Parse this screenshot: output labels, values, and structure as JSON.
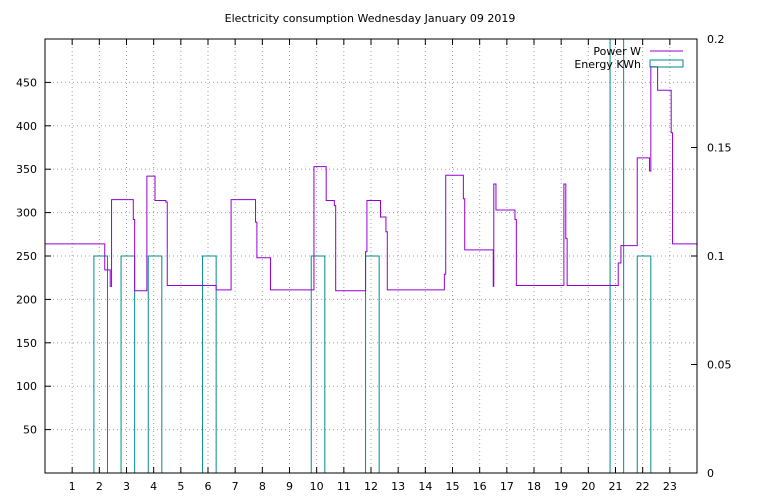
{
  "chart_data": {
    "type": "line",
    "title": "Electricity consumption Wednesday January 09 2019",
    "x": {
      "min": 0,
      "max": 24,
      "ticks": [
        1,
        2,
        3,
        4,
        5,
        6,
        7,
        8,
        9,
        10,
        11,
        12,
        13,
        14,
        15,
        16,
        17,
        18,
        19,
        20,
        21,
        22,
        23
      ],
      "grid": true
    },
    "y_left": {
      "min": 0,
      "max": 500,
      "ticks": [
        50,
        100,
        150,
        200,
        250,
        300,
        350,
        400,
        450
      ],
      "grid": true
    },
    "y_right": {
      "min": 0,
      "max": 0.2,
      "ticks": [
        0,
        0.05,
        0.1,
        0.15,
        0.2
      ],
      "tick_labels": [
        "0",
        "0.05",
        "0.1",
        "0.15",
        "0.2"
      ]
    },
    "legend_position": "top-right",
    "series": [
      {
        "name": "Power W",
        "axis": "left",
        "color": "#9400d3",
        "type": "step",
        "points": [
          [
            0,
            264
          ],
          [
            2.2,
            264
          ],
          [
            2.2,
            234
          ],
          [
            2.4,
            234
          ],
          [
            2.4,
            215
          ],
          [
            2.45,
            215
          ],
          [
            2.45,
            315
          ],
          [
            3.25,
            315
          ],
          [
            3.25,
            292
          ],
          [
            3.3,
            292
          ],
          [
            3.3,
            210
          ],
          [
            3.75,
            210
          ],
          [
            3.75,
            342
          ],
          [
            4.05,
            342
          ],
          [
            4.05,
            314
          ],
          [
            4.45,
            314
          ],
          [
            4.45,
            312
          ],
          [
            4.5,
            312
          ],
          [
            4.5,
            216
          ],
          [
            6.3,
            216
          ],
          [
            6.3,
            211
          ],
          [
            6.85,
            211
          ],
          [
            6.85,
            315
          ],
          [
            7.75,
            315
          ],
          [
            7.75,
            289
          ],
          [
            7.8,
            289
          ],
          [
            7.8,
            248
          ],
          [
            8.3,
            248
          ],
          [
            8.3,
            211
          ],
          [
            9.9,
            211
          ],
          [
            9.9,
            353
          ],
          [
            10.35,
            353
          ],
          [
            10.35,
            314
          ],
          [
            10.65,
            314
          ],
          [
            10.65,
            308
          ],
          [
            10.7,
            308
          ],
          [
            10.7,
            210
          ],
          [
            11.8,
            210
          ],
          [
            11.8,
            255
          ],
          [
            11.85,
            255
          ],
          [
            11.85,
            314
          ],
          [
            12.35,
            314
          ],
          [
            12.35,
            295
          ],
          [
            12.55,
            295
          ],
          [
            12.55,
            278
          ],
          [
            12.6,
            278
          ],
          [
            12.6,
            211
          ],
          [
            14.7,
            211
          ],
          [
            14.7,
            229
          ],
          [
            14.75,
            229
          ],
          [
            14.75,
            343
          ],
          [
            15.4,
            343
          ],
          [
            15.4,
            316
          ],
          [
            15.45,
            316
          ],
          [
            15.45,
            257
          ],
          [
            16.5,
            257
          ],
          [
            16.5,
            215
          ],
          [
            16.52,
            215
          ],
          [
            16.52,
            333
          ],
          [
            16.6,
            333
          ],
          [
            16.6,
            303
          ],
          [
            17.3,
            303
          ],
          [
            17.3,
            292
          ],
          [
            17.35,
            292
          ],
          [
            17.35,
            216
          ],
          [
            19.1,
            216
          ],
          [
            19.1,
            333
          ],
          [
            19.17,
            333
          ],
          [
            19.17,
            270
          ],
          [
            19.22,
            270
          ],
          [
            19.22,
            216
          ],
          [
            21.1,
            216
          ],
          [
            21.1,
            242
          ],
          [
            21.2,
            242
          ],
          [
            21.2,
            262
          ],
          [
            21.8,
            262
          ],
          [
            21.8,
            363
          ],
          [
            22.25,
            363
          ],
          [
            22.25,
            348
          ],
          [
            22.3,
            348
          ],
          [
            22.3,
            468
          ],
          [
            22.55,
            468
          ],
          [
            22.55,
            441
          ],
          [
            23.05,
            441
          ],
          [
            23.05,
            392
          ],
          [
            23.1,
            392
          ],
          [
            23.1,
            264
          ],
          [
            24,
            264
          ]
        ]
      },
      {
        "name": "Energy KWh",
        "axis": "right",
        "color": "#008b8b",
        "type": "bars",
        "bars": [
          {
            "from": 1.8,
            "to": 2.3,
            "value": 0.1
          },
          {
            "from": 2.8,
            "to": 3.3,
            "value": 0.1
          },
          {
            "from": 3.8,
            "to": 4.3,
            "value": 0.1
          },
          {
            "from": 5.8,
            "to": 6.3,
            "value": 0.1
          },
          {
            "from": 9.8,
            "to": 10.3,
            "value": 0.1
          },
          {
            "from": 11.8,
            "to": 12.3,
            "value": 0.1
          },
          {
            "from": 20.8,
            "to": 21.3,
            "value": 0.2
          },
          {
            "from": 21.8,
            "to": 22.3,
            "value": 0.1
          }
        ]
      }
    ]
  }
}
